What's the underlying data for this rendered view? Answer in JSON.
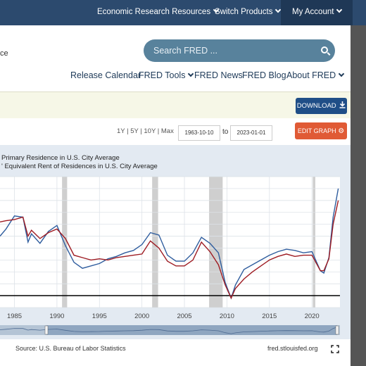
{
  "topbar": {
    "research": "Economic Research Resources",
    "switch": "Switch Products",
    "account": "My Account"
  },
  "header": {
    "fragment": "ce",
    "search_placeholder": "Search FRED ...",
    "nav": [
      "Release Calendar",
      "FRED Tools",
      "FRED News",
      "FRED Blog",
      "About FRED"
    ]
  },
  "toolbar": {
    "download": "DOWNLOAD",
    "ranges": "1Y | 5Y | 10Y | Max",
    "start_date": "1963-10-10",
    "to": "to",
    "end_date": "2023-01-01",
    "edit_graph": "EDIT GRAPH"
  },
  "legend": {
    "line1": "Primary Residence in U.S. City Average",
    "line2": "' Equivalent Rent of Residences in U.S. City Average"
  },
  "footer": {
    "source": "Source: U.S. Bureau of Labor Statistics",
    "site": "fred.stlouisfed.org"
  },
  "colors": {
    "rent_primary": "#2f5d9e",
    "owners_equivalent_rent": "#9e1b22",
    "recession": "#cfcfcf"
  },
  "chart_data": {
    "type": "line",
    "x_ticks": [
      "1985",
      "1990",
      "1995",
      "2000",
      "2005",
      "2010",
      "2015",
      "2020"
    ],
    "xlim": [
      1983.3,
      2023.3
    ],
    "ylim": [
      -1,
      10
    ],
    "grid": true,
    "recessions": [
      [
        1990.6,
        1991.2
      ],
      [
        2001.2,
        2001.9
      ],
      [
        2007.9,
        2009.5
      ],
      [
        2020.1,
        2020.4
      ]
    ],
    "series": [
      {
        "name": "Primary Residence in U.S. City Average",
        "color": "#2f5d9e",
        "x": [
          1983.3,
          1984,
          1985,
          1986,
          1986.6,
          1987,
          1988,
          1989,
          1990,
          1991,
          1992,
          1993,
          1994,
          1995,
          1996,
          1997,
          1998,
          1999,
          2000,
          2001,
          2002,
          2003,
          2004,
          2005,
          2006,
          2007,
          2008,
          2009,
          2009.8,
          2010.5,
          2011,
          2012,
          2013,
          2014,
          2015,
          2016,
          2017,
          2018,
          2019,
          2020,
          2021,
          2021.4,
          2022,
          2022.5,
          2023.1
        ],
        "y": [
          5.0,
          5.6,
          6.7,
          6.6,
          4.5,
          5.2,
          4.4,
          5.4,
          5.9,
          4.2,
          2.8,
          2.3,
          2.5,
          2.7,
          3.1,
          3.3,
          3.6,
          3.8,
          4.3,
          5.3,
          5.1,
          3.4,
          2.9,
          2.9,
          3.6,
          4.9,
          4.4,
          3.6,
          1.1,
          -0.2,
          0.9,
          2.2,
          2.6,
          3.0,
          3.4,
          3.7,
          3.9,
          3.8,
          3.6,
          3.7,
          2.1,
          1.9,
          3.2,
          6.6,
          9.0
        ]
      },
      {
        "name": "Owners' Equivalent Rent of Residences in U.S. City Average",
        "color": "#9e1b22",
        "x": [
          1983.3,
          1984,
          1985,
          1986,
          1986.6,
          1987,
          1988,
          1989,
          1990,
          1991,
          1992,
          1993,
          1994,
          1995,
          1996,
          1997,
          1998,
          1999,
          2000,
          2001,
          2002,
          2003,
          2004,
          2005,
          2006,
          2007,
          2008,
          2009,
          2009.8,
          2010.5,
          2011,
          2012,
          2013,
          2014,
          2015,
          2016,
          2017,
          2018,
          2019,
          2020,
          2021,
          2021.4,
          2022,
          2022.5,
          2023.1
        ],
        "y": [
          6.2,
          6.3,
          6.4,
          6.6,
          5.0,
          5.5,
          4.8,
          5.3,
          5.6,
          4.8,
          3.4,
          3.2,
          3.0,
          3.1,
          3.0,
          3.2,
          3.3,
          3.4,
          3.5,
          4.6,
          4.0,
          2.9,
          2.5,
          2.5,
          3.0,
          4.5,
          3.7,
          2.6,
          0.9,
          -0.2,
          0.6,
          1.4,
          2.0,
          2.5,
          3.0,
          3.3,
          3.5,
          3.3,
          3.4,
          3.4,
          2.1,
          2.1,
          3.1,
          6.0,
          8.0
        ]
      }
    ]
  }
}
